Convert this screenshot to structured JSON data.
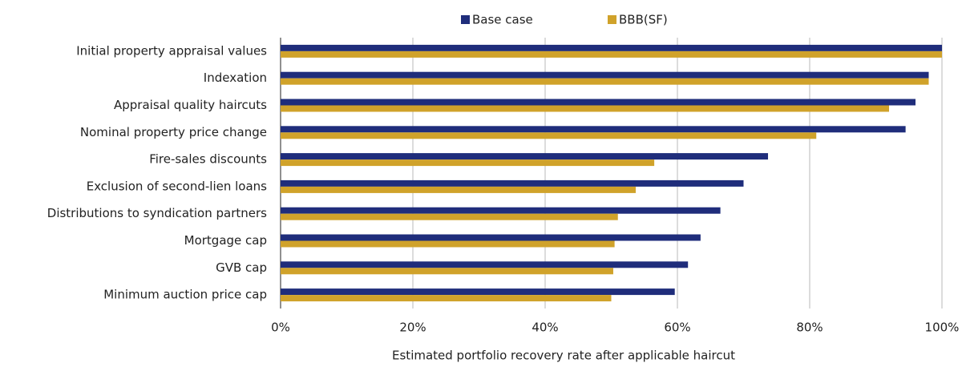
{
  "chart_data": {
    "type": "barh",
    "categories": [
      "Initial property appraisal values",
      "Indexation",
      "Appraisal quality haircuts",
      "Nominal property price change",
      "Fire-sales discounts",
      "Exclusion of second-lien loans",
      "Distributions to syndication partners",
      "Mortgage cap",
      "GVB cap",
      "Minimum auction price cap"
    ],
    "series": [
      {
        "name": "Base case",
        "color": "#1f2d7b",
        "values": [
          100,
          98,
          96,
          94.5,
          73.7,
          70,
          66.5,
          63.5,
          61.6,
          59.6
        ]
      },
      {
        "name": "BBB(SF)",
        "color": "#d0a22a",
        "values": [
          100,
          98,
          92,
          81,
          56.5,
          53.7,
          51,
          50.5,
          50.3,
          50
        ]
      }
    ],
    "xlabel": "Estimated portfolio recovery rate after applicable haircut",
    "xlim": [
      0,
      100
    ],
    "xticks": [
      {
        "value": 0,
        "label": "0%"
      },
      {
        "value": 20,
        "label": "20%"
      },
      {
        "value": 40,
        "label": "40%"
      },
      {
        "value": 60,
        "label": "60%"
      },
      {
        "value": 80,
        "label": "80%"
      },
      {
        "value": 100,
        "label": "100%"
      }
    ],
    "grid": true,
    "legend": "top"
  }
}
